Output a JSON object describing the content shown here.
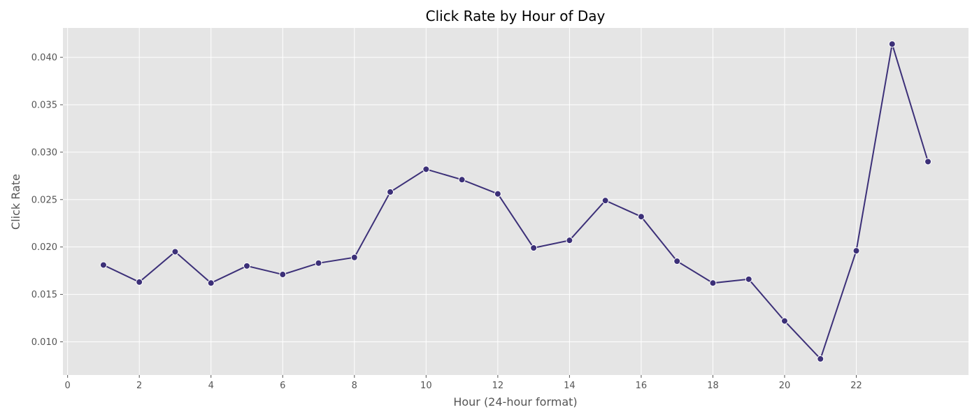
{
  "chart_data": {
    "type": "line",
    "title": "Click Rate by Hour of Day",
    "xlabel": "Hour (24-hour format)",
    "ylabel": "Click Rate",
    "x": [
      1,
      2,
      3,
      4,
      5,
      6,
      7,
      8,
      9,
      10,
      11,
      12,
      13,
      14,
      15,
      16,
      17,
      18,
      19,
      20,
      21,
      22,
      23,
      24
    ],
    "values": [
      0.0181,
      0.0163,
      0.0195,
      0.0162,
      0.018,
      0.0171,
      0.0183,
      0.0189,
      0.0258,
      0.0282,
      0.0271,
      0.0256,
      0.0199,
      0.0207,
      0.0249,
      0.0232,
      0.0185,
      0.0162,
      0.0166,
      0.0122,
      0.0082,
      0.0196,
      0.0414,
      0.029
    ],
    "xticks": [
      0,
      2,
      4,
      6,
      8,
      10,
      12,
      14,
      16,
      18,
      20,
      22
    ],
    "yticks": [
      0.01,
      0.015,
      0.02,
      0.025,
      0.03,
      0.035,
      0.04
    ],
    "ytick_labels": [
      "0.010",
      "0.015",
      "0.020",
      "0.025",
      "0.030",
      "0.035",
      "0.040"
    ],
    "xlim": [
      -0.13,
      25.13
    ],
    "ylim": [
      0.0065,
      0.0431
    ],
    "grid": true,
    "colors": {
      "line": "#3c3078",
      "marker_edge": "#ffffff",
      "plot_bg": "#e5e5e5",
      "grid": "#ffffff"
    }
  }
}
